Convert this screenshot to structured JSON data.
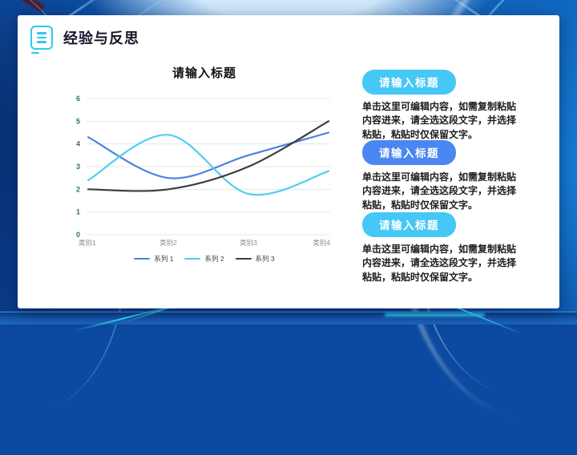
{
  "slide": {
    "header": {
      "icon": "document-lines-icon",
      "title": "经验与反思"
    },
    "blocks": [
      {
        "title": "请输入标题",
        "body": "单击这里可编辑内容，如需复制粘贴内容进来，请全选这段文字，并选择粘贴，粘贴时仅保留文字。",
        "accent": "#45c8f5"
      },
      {
        "title": "请输入标题",
        "body": "单击这里可编辑内容，如需复制粘贴内容进来，请全选这段文字，并选择粘贴，粘贴时仅保留文字。",
        "accent": "#4b87f0"
      },
      {
        "title": "请输入标题",
        "body": "单击这里可编辑内容，如需复制粘贴内容进来，请全选这段文字，并选择粘贴，粘贴时仅保留文字。",
        "accent": "#45c8f5"
      }
    ],
    "colors": {
      "header_accent": "#35c5f1",
      "card_bg": "#ffffff",
      "frame_blue": "#0b4aa5",
      "frame_cyan_accent": "#2fd4ff"
    }
  },
  "chart_data": {
    "type": "line",
    "title": "请输入标题",
    "categories": [
      "类别1",
      "类别2",
      "类别3",
      "类别4"
    ],
    "series": [
      {
        "name": "系列 1",
        "color": "#4d80e4",
        "values": [
          4.3,
          2.5,
          3.5,
          4.5
        ]
      },
      {
        "name": "系列 2",
        "color": "#4ecdf2",
        "values": [
          2.4,
          4.4,
          1.8,
          2.8
        ]
      },
      {
        "name": "系列 3",
        "color": "#3d3d3d",
        "values": [
          2.0,
          2.0,
          3.0,
          5.0
        ]
      }
    ],
    "xlabel": "",
    "ylabel": "",
    "ylim": [
      0,
      6
    ],
    "yticks": [
      0,
      1,
      2,
      3,
      4,
      5,
      6
    ],
    "grid": true,
    "smooth": true,
    "legend_position": "bottom",
    "ytick_color": "#2e7164",
    "xtick_color": "#8c8c8c",
    "gridline_color": "#e4e7e5"
  }
}
